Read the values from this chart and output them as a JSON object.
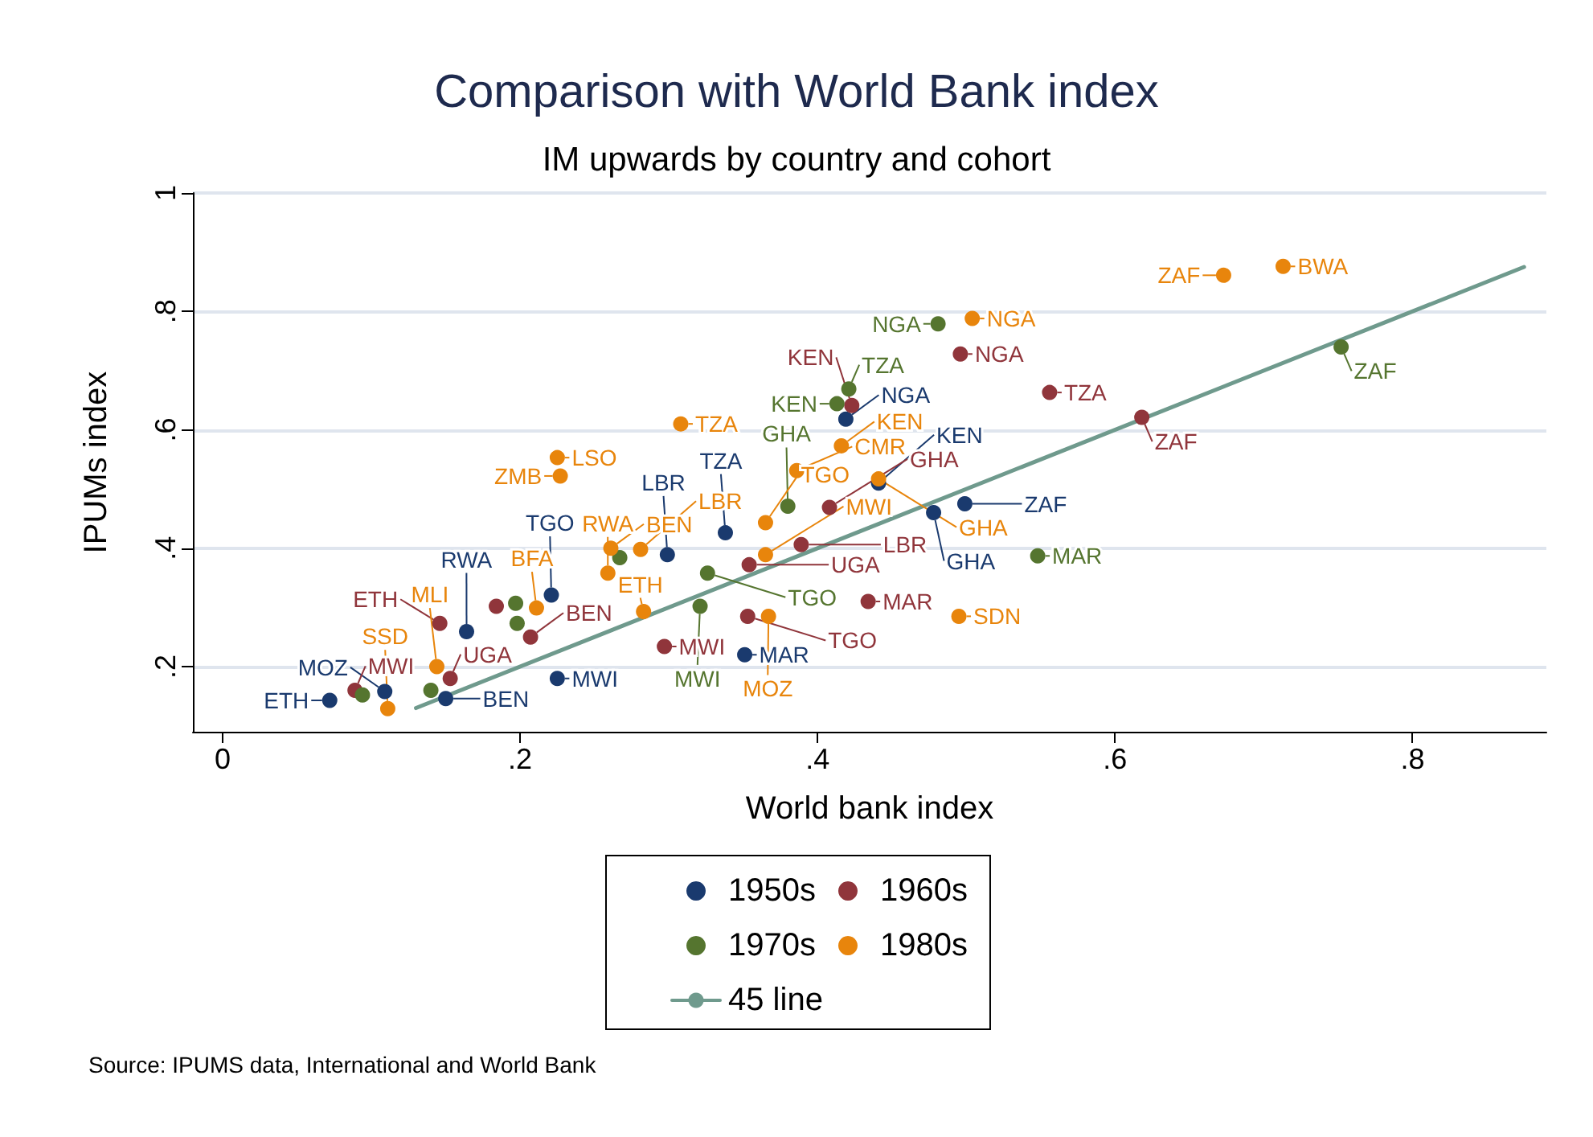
{
  "chart_data": {
    "type": "scatter",
    "title": "Comparison with World Bank index",
    "subtitle": "IM upwards by country and cohort",
    "xlabel": "World bank index",
    "ylabel": "IPUMs index",
    "xlim": [
      -0.02,
      0.89
    ],
    "ylim": [
      0.09,
      1
    ],
    "xticks": [
      0,
      {
        "value": 0.2,
        "label": ".2"
      },
      {
        "value": 0.4,
        "label": ".4"
      },
      {
        "value": 0.6,
        "label": ".6"
      },
      {
        "value": 0.8,
        "label": ".8"
      }
    ],
    "yticks": [
      {
        "value": 0.2,
        "label": ".2"
      },
      {
        "value": 0.4,
        "label": ".4"
      },
      {
        "value": 0.6,
        "label": ".6"
      },
      {
        "value": 0.8,
        "label": ".8"
      },
      1
    ],
    "grid": "y",
    "legend": "bottom",
    "marker": "circle",
    "annotations": [
      "Source: IPUMS data, International and World Bank"
    ],
    "series": [
      {
        "name": "1950s",
        "color": "#1a3a6e",
        "x": [
          0.072,
          0.109,
          0.15,
          0.164,
          0.225,
          0.221,
          0.299,
          0.338,
          0.351,
          0.419,
          0.441,
          0.478,
          0.499
        ],
        "values": [
          0.143,
          0.158,
          0.146,
          0.259,
          0.18,
          0.321,
          0.389,
          0.426,
          0.22,
          0.618,
          0.51,
          0.46,
          0.475
        ],
        "value_labels": [
          "ETH",
          "MOZ",
          "BEN",
          "RWA",
          "MWI",
          "TGO",
          "LBR",
          "TZA",
          "MAR",
          "NGA",
          "KEN",
          "GHA",
          "ZAF"
        ]
      },
      {
        "name": "1960s",
        "color": "#90353b",
        "x": [
          0.089,
          0.153,
          0.146,
          0.184,
          0.207,
          0.297,
          0.353,
          0.354,
          0.389,
          0.408,
          0.423,
          0.434,
          0.496,
          0.556,
          0.618
        ],
        "values": [
          0.16,
          0.18,
          0.273,
          0.302,
          0.25,
          0.234,
          0.285,
          0.372,
          0.406,
          0.469,
          0.641,
          0.31,
          0.728,
          0.663,
          0.621
        ],
        "value_labels": [
          "MWI",
          "UGA",
          "ETH",
          null,
          "BEN",
          "MWI",
          "TGO",
          "UGA",
          "LBR",
          "GHA",
          "KEN",
          "MAR",
          "NGA",
          "TZA",
          "ZAF"
        ]
      },
      {
        "name": "1970s",
        "color": "#55752f",
        "x": [
          0.094,
          0.14,
          0.197,
          0.198,
          0.267,
          0.326,
          0.321,
          0.38,
          0.413,
          0.421,
          0.481,
          0.548,
          0.752
        ],
        "values": [
          0.152,
          0.16,
          0.307,
          0.273,
          0.384,
          0.358,
          0.302,
          0.471,
          0.644,
          0.669,
          0.779,
          0.387,
          0.74
        ],
        "value_labels": [
          null,
          null,
          null,
          null,
          null,
          "TGO",
          "MWI",
          "GHA",
          "KEN",
          "TZA",
          "NGA",
          "MAR",
          "ZAF"
        ]
      },
      {
        "name": "1980s",
        "color": "#e8850c",
        "x": [
          0.111,
          0.144,
          0.211,
          0.225,
          0.227,
          0.259,
          0.261,
          0.281,
          0.283,
          0.308,
          0.365,
          0.365,
          0.367,
          0.386,
          0.416,
          0.441,
          0.495,
          0.504,
          0.673,
          0.713
        ],
        "values": [
          0.129,
          0.2,
          0.299,
          0.553,
          0.522,
          0.358,
          0.4,
          0.398,
          0.293,
          0.61,
          0.389,
          0.443,
          0.285,
          0.531,
          0.573,
          0.517,
          0.285,
          0.788,
          0.861,
          0.876
        ],
        "value_labels": [
          "SSD",
          "MLI",
          "BFA",
          "LSO",
          "ZMB",
          "RWA",
          "BEN",
          "LBR",
          "ETH",
          "TZA",
          "MWI",
          "TGO",
          "MOZ",
          "CMR",
          "KEN",
          "GHA",
          "SDN",
          "NGA",
          "ZAF",
          "BWA"
        ]
      },
      {
        "name": "45 line",
        "type": "line",
        "color": "#6f9a8d",
        "marker": "none",
        "x": [
          0.13,
          0.875
        ],
        "values": [
          0.13,
          0.875
        ]
      }
    ]
  }
}
